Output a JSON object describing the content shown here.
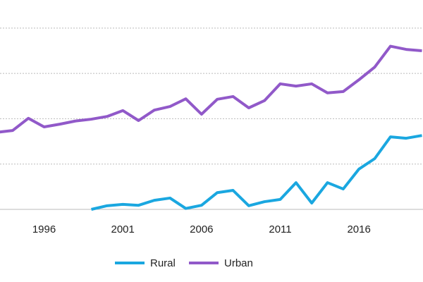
{
  "chart_data": {
    "type": "line",
    "x": [
      1993,
      1994,
      1995,
      1996,
      1997,
      1998,
      1999,
      2000,
      2001,
      2002,
      2003,
      2004,
      2005,
      2006,
      2007,
      2008,
      2009,
      2010,
      2011,
      2012,
      2013,
      2014,
      2015,
      2016,
      2017,
      2018,
      2019,
      2020
    ],
    "series": [
      {
        "name": "Rural",
        "color": "#1aa7e0",
        "values": [
          null,
          null,
          null,
          null,
          null,
          null,
          0.0,
          0.08,
          0.11,
          0.09,
          0.2,
          0.25,
          0.02,
          0.09,
          0.37,
          0.42,
          0.08,
          0.17,
          0.22,
          0.59,
          0.14,
          0.59,
          0.45,
          0.89,
          1.12,
          1.6,
          1.57,
          1.63
        ]
      },
      {
        "name": "Urban",
        "color": "#9159c9",
        "values": [
          1.7,
          1.74,
          2.01,
          1.82,
          1.88,
          1.95,
          1.99,
          2.05,
          2.18,
          1.96,
          2.19,
          2.27,
          2.44,
          2.1,
          2.43,
          2.49,
          2.24,
          2.4,
          2.77,
          2.72,
          2.77,
          2.57,
          2.6,
          2.86,
          3.14,
          3.6,
          3.53,
          3.5
        ]
      }
    ],
    "xlim": [
      1993.2,
      2020
    ],
    "xticks": [
      1996,
      2001,
      2006,
      2011,
      2016
    ],
    "ylim": [
      0,
      4.62
    ],
    "yticks": [
      0,
      1,
      2,
      3,
      4
    ],
    "grid": true
  }
}
